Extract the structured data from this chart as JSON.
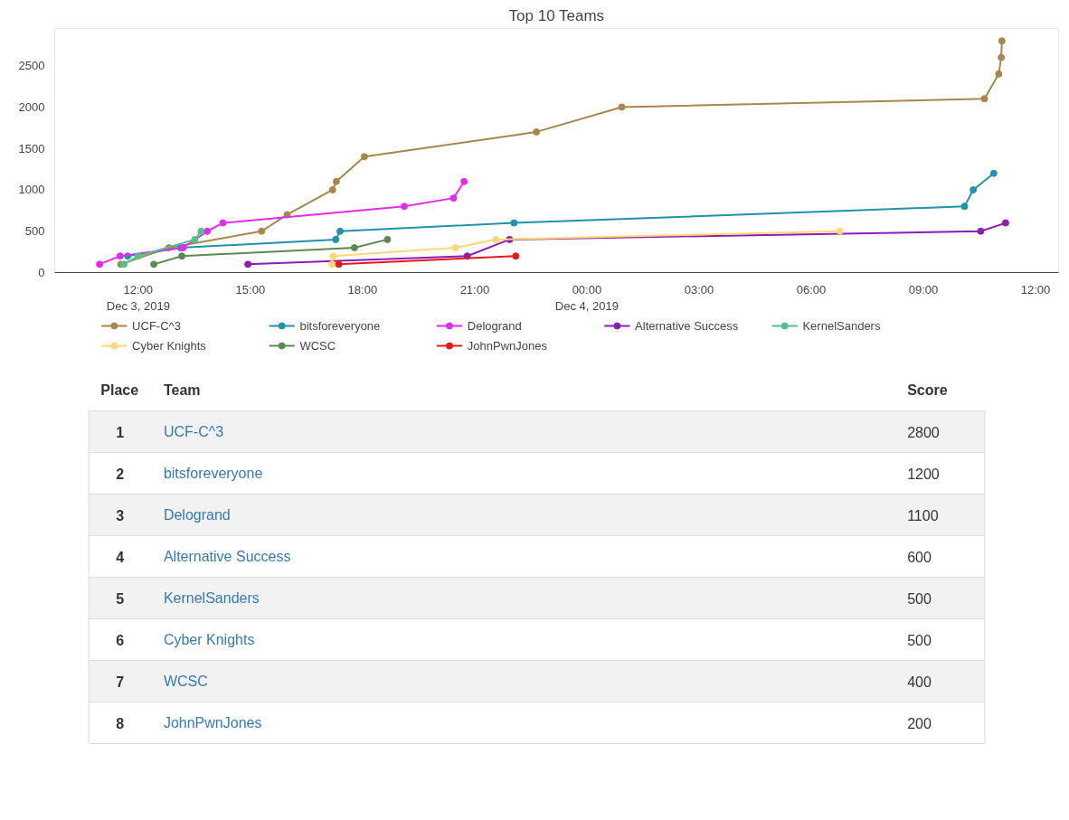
{
  "chart_data": {
    "type": "line",
    "title": "Top 10 Teams",
    "marker": "circle",
    "line_style": "solid",
    "legend": "bottom",
    "grid": false,
    "xlim": [
      "2019-12-03T09:46",
      "2019-12-04T12:37"
    ],
    "xticks": [
      {
        "value": "2019-12-03T12:00",
        "label": "12:00\nDec 3, 2019"
      },
      {
        "value": "2019-12-03T15:00",
        "label": "15:00"
      },
      {
        "value": "2019-12-03T18:00",
        "label": "18:00"
      },
      {
        "value": "2019-12-03T21:00",
        "label": "21:00"
      },
      {
        "value": "2019-12-04T00:00",
        "label": "00:00\nDec 4, 2019"
      },
      {
        "value": "2019-12-04T03:00",
        "label": "03:00"
      },
      {
        "value": "2019-12-04T06:00",
        "label": "06:00"
      },
      {
        "value": "2019-12-04T09:00",
        "label": "09:00"
      },
      {
        "value": "2019-12-04T12:00",
        "label": "12:00"
      }
    ],
    "ylim": [
      0,
      2950
    ],
    "yticks": [
      0,
      500,
      1000,
      1500,
      2000,
      2500
    ],
    "series": [
      {
        "name": "UCF-C^3",
        "color": "#a8874a",
        "x": [
          "2019-12-03T11:32",
          "2019-12-03T12:49",
          "2019-12-03T15:18",
          "2019-12-03T15:59",
          "2019-12-03T17:12",
          "2019-12-03T17:18",
          "2019-12-03T18:03",
          "2019-12-03T22:39",
          "2019-12-04T00:56",
          "2019-12-04T10:38",
          "2019-12-04T11:01",
          "2019-12-04T11:05",
          "2019-12-04T11:06"
        ],
        "values": [
          100,
          300,
          500,
          700,
          1000,
          1100,
          1400,
          1700,
          2000,
          2100,
          2400,
          2600,
          2800
        ]
      },
      {
        "name": "bitsforeveryone",
        "color": "#1f93a8",
        "x": [
          "2019-12-03T11:43",
          "2019-12-03T13:08",
          "2019-12-03T17:17",
          "2019-12-03T17:24",
          "2019-12-03T22:03",
          "2019-12-04T10:06",
          "2019-12-04T10:20",
          "2019-12-04T10:53"
        ],
        "values": [
          200,
          300,
          400,
          500,
          600,
          800,
          1000,
          1200
        ]
      },
      {
        "name": "Delogrand",
        "color": "#e32bf0",
        "x": [
          "2019-12-03T10:58",
          "2019-12-03T11:31",
          "2019-12-03T13:12",
          "2019-12-03T13:51",
          "2019-12-03T14:16",
          "2019-12-03T19:07",
          "2019-12-03T20:26",
          "2019-12-03T20:43"
        ],
        "values": [
          100,
          200,
          300,
          500,
          600,
          800,
          900,
          1100
        ]
      },
      {
        "name": "Alternative Success",
        "color": "#8e1cb3",
        "x": [
          "2019-12-03T14:56",
          "2019-12-03T20:48",
          "2019-12-03T21:56",
          "2019-12-04T10:32",
          "2019-12-04T11:12"
        ],
        "values": [
          100,
          200,
          400,
          500,
          600
        ]
      },
      {
        "name": "KernelSanders",
        "color": "#4ec48a",
        "x": [
          "2019-12-03T11:37",
          "2019-12-03T12:00",
          "2019-12-03T13:31",
          "2019-12-03T13:41"
        ],
        "values": [
          100,
          200,
          400,
          500
        ]
      },
      {
        "name": "Cyber Knights",
        "color": "#fdd876",
        "x": [
          "2019-12-03T17:11",
          "2019-12-03T17:13",
          "2019-12-03T20:29",
          "2019-12-03T21:34",
          "2019-12-04T06:46"
        ],
        "values": [
          100,
          200,
          300,
          400,
          500
        ]
      },
      {
        "name": "WCSC",
        "color": "#5b8a4f",
        "x": [
          "2019-12-03T12:25",
          "2019-12-03T13:10",
          "2019-12-03T17:47",
          "2019-12-03T18:40"
        ],
        "values": [
          100,
          200,
          300,
          400
        ]
      },
      {
        "name": "JohnPwnJones",
        "color": "#e31a1c",
        "x": [
          "2019-12-03T17:22",
          "2019-12-03T22:06"
        ],
        "values": [
          100,
          200
        ]
      }
    ],
    "annotations": [
      "Place",
      "Team",
      "Score",
      "1",
      "UCF-C^3",
      "2800",
      "2",
      "bitsforeveryone",
      "1200",
      "3",
      "Delogrand",
      "1100",
      "4",
      "Alternative Success",
      "600",
      "5",
      "KernelSanders",
      "500",
      "6",
      "Cyber Knights",
      "500",
      "7",
      "WCSC",
      "400",
      "8",
      "JohnPwnJones",
      "200"
    ]
  }
}
